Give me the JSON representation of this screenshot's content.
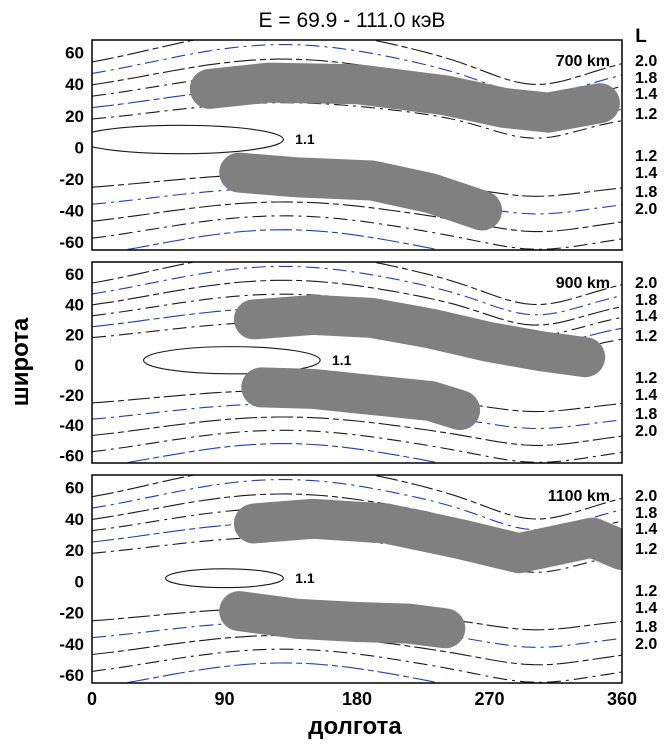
{
  "chart_data": {
    "type": "contour",
    "title": "E = 69.9 - 111.0 кэВ",
    "xlabel": "долгота",
    "ylabel": "широта",
    "right_axis_label": "L",
    "xlim": [
      0,
      360
    ],
    "ylim": [
      -65,
      68
    ],
    "x_ticks": [
      0,
      90,
      180,
      270,
      360
    ],
    "y_ticks": [
      60,
      40,
      20,
      0,
      -20,
      -40,
      -60
    ],
    "colors": {
      "band": "#808080",
      "contour": "#1a1a1a",
      "contour_alt": "#1a3cd0",
      "frame": "#000000"
    },
    "panels": [
      {
        "altitude_label": "700 km",
        "contour_label": "1.1",
        "l_labels_north": [
          "2.0",
          "1.8",
          "1.4",
          "1.2"
        ],
        "l_labels_south": [
          "1.2",
          "1.4",
          "1.8",
          "2.0"
        ],
        "bands": [
          {
            "name": "north",
            "x": [
              80,
              120,
              180,
              240,
              280,
              310,
              345
            ],
            "y": [
              37,
              41,
              40,
              33,
              25,
              22,
              28
            ]
          },
          {
            "name": "south",
            "x": [
              100,
              140,
              190,
              230,
              265
            ],
            "y": [
              -16,
              -19,
              -21,
              -29,
              -40
            ]
          }
        ]
      },
      {
        "altitude_label": "900 km",
        "contour_label": "1.1",
        "l_labels_north": [
          "2.0",
          "1.8",
          "1.4",
          "1.2"
        ],
        "l_labels_south": [
          "1.2",
          "1.4",
          "1.8",
          "2.0"
        ],
        "bands": [
          {
            "name": "north",
            "x": [
              110,
              150,
              190,
              230,
              270,
              305,
              335
            ],
            "y": [
              30,
              33,
              31,
              24,
              15,
              9,
              5
            ]
          },
          {
            "name": "south",
            "x": [
              115,
              150,
              190,
              230,
              250
            ],
            "y": [
              -15,
              -16,
              -20,
              -24,
              -30
            ]
          }
        ]
      },
      {
        "altitude_label": "1100 km",
        "contour_label": "1.1",
        "l_labels_north": [
          "2.0",
          "1.8",
          "1.4",
          "1.2"
        ],
        "l_labels_south": [
          "1.2",
          "1.4",
          "1.8",
          "2.0"
        ],
        "bands": [
          {
            "name": "north",
            "x": [
              110,
              150,
              200,
              250,
              290,
              310,
              340,
              360
            ],
            "y": [
              37,
              40,
              37,
              27,
              18,
              22,
              28,
              20
            ]
          },
          {
            "name": "south",
            "x": [
              100,
              140,
              180,
              215,
              240
            ],
            "y": [
              -19,
              -24,
              -26,
              -27,
              -30
            ]
          }
        ]
      }
    ]
  }
}
